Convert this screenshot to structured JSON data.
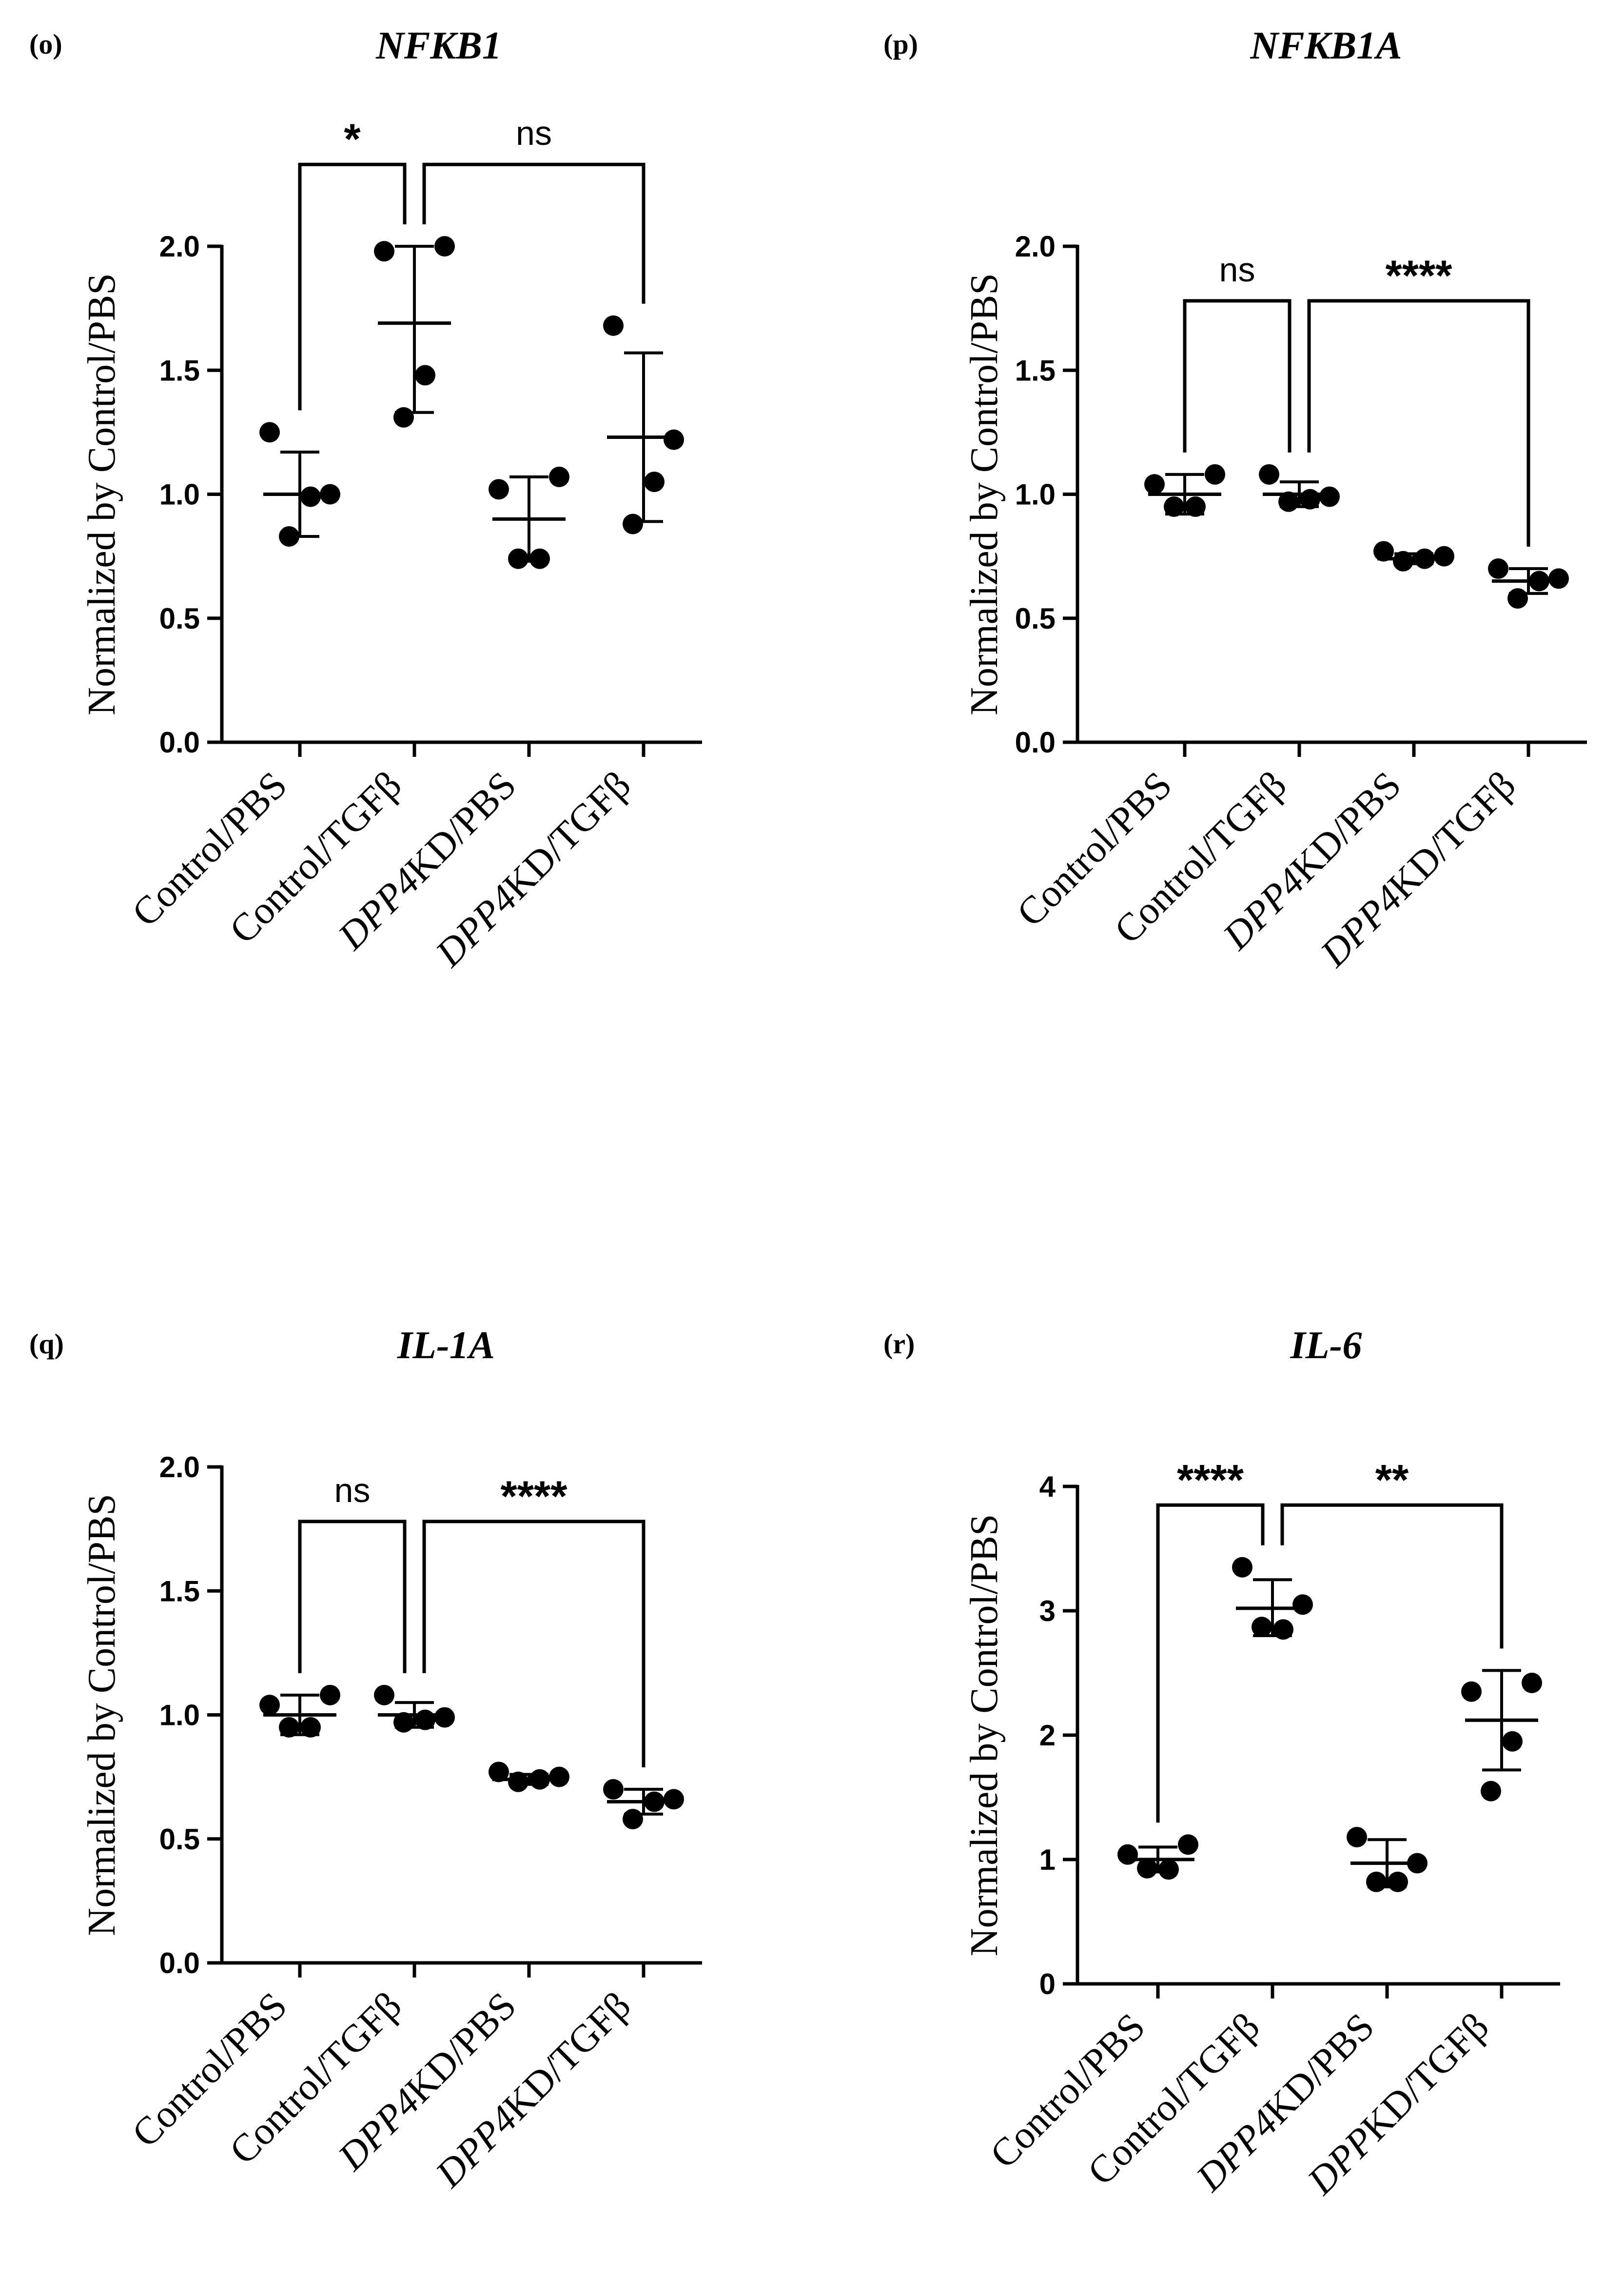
{
  "chart_data": [
    {
      "type": "scatter",
      "panel_label": "(o)",
      "title": "NFKB1",
      "ylabel": "Normalized by Control/PBS",
      "ylim": [
        0,
        2.0
      ],
      "yticks": [
        "0.0",
        "0.5",
        "1.0",
        "1.5",
        "2.0"
      ],
      "categories": [
        {
          "parts": [
            [
              "Control/PBS",
              false
            ]
          ]
        },
        {
          "parts": [
            [
              "Control/TGFβ",
              false
            ]
          ]
        },
        {
          "parts": [
            [
              "DPP4",
              true
            ],
            [
              "KD/PBS",
              false
            ]
          ]
        },
        {
          "parts": [
            [
              "DPP4",
              true
            ],
            [
              "KD/TGFβ",
              false
            ]
          ]
        }
      ],
      "groups": [
        {
          "points": [
            1.25,
            1.0,
            0.99,
            0.83
          ],
          "mean": 1.0,
          "err_low": 0.83,
          "err_high": 1.17
        },
        {
          "points": [
            1.98,
            2.0,
            1.48,
            1.31
          ],
          "mean": 1.69,
          "err_low": 1.33,
          "err_high": 2.0
        },
        {
          "points": [
            1.02,
            1.07,
            0.74,
            0.74
          ],
          "mean": 0.9,
          "err_low": 0.73,
          "err_high": 1.07
        },
        {
          "points": [
            1.68,
            1.22,
            1.05,
            0.88
          ],
          "mean": 1.23,
          "err_low": 0.89,
          "err_high": 1.57
        }
      ],
      "comparisons": [
        {
          "from": 0,
          "to": 1,
          "label": "*",
          "y": 2.33
        },
        {
          "from": 1,
          "to": 3,
          "label": "ns",
          "y": 2.33
        }
      ]
    },
    {
      "type": "scatter",
      "panel_label": "(p)",
      "title": "NFKB1A",
      "ylabel": "Normalized by Control/PBS",
      "ylim": [
        0,
        2.0
      ],
      "yticks": [
        "0.0",
        "0.5",
        "1.0",
        "1.5",
        "2.0"
      ],
      "categories": [
        {
          "parts": [
            [
              "Control/PBS",
              false
            ]
          ]
        },
        {
          "parts": [
            [
              "Control/TGFβ",
              false
            ]
          ]
        },
        {
          "parts": [
            [
              "DPP4",
              true
            ],
            [
              "KD/PBS",
              false
            ]
          ]
        },
        {
          "parts": [
            [
              "DPP4",
              true
            ],
            [
              "KD/TGFβ",
              false
            ]
          ]
        }
      ],
      "groups": [
        {
          "points": [
            1.04,
            1.08,
            0.95,
            0.95
          ],
          "mean": 1.0,
          "err_low": 0.92,
          "err_high": 1.08
        },
        {
          "points": [
            1.08,
            0.99,
            0.98,
            0.97
          ],
          "mean": 1.0,
          "err_low": 0.95,
          "err_high": 1.05
        },
        {
          "points": [
            0.77,
            0.75,
            0.74,
            0.73
          ],
          "mean": 0.74,
          "err_low": 0.72,
          "err_high": 0.76
        },
        {
          "points": [
            0.7,
            0.66,
            0.65,
            0.58
          ],
          "mean": 0.65,
          "err_low": 0.6,
          "err_high": 0.7
        }
      ],
      "comparisons": [
        {
          "from": 0,
          "to": 1,
          "label": "ns",
          "y": 1.78
        },
        {
          "from": 1,
          "to": 3,
          "label": "****",
          "y": 1.78
        }
      ]
    },
    {
      "type": "scatter",
      "panel_label": "(q)",
      "title": "IL-1A",
      "ylabel": "Normalized by Control/PBS",
      "ylim": [
        0,
        2.0
      ],
      "yticks": [
        "0.0",
        "0.5",
        "1.0",
        "1.5",
        "2.0"
      ],
      "categories": [
        {
          "parts": [
            [
              "Control/PBS",
              false
            ]
          ]
        },
        {
          "parts": [
            [
              "Control/TGFβ",
              false
            ]
          ]
        },
        {
          "parts": [
            [
              "DPP4",
              true
            ],
            [
              "KD/PBS",
              false
            ]
          ]
        },
        {
          "parts": [
            [
              "DPP4",
              true
            ],
            [
              "KD/TGFβ",
              false
            ]
          ]
        }
      ],
      "groups": [
        {
          "points": [
            1.04,
            1.08,
            0.95,
            0.95
          ],
          "mean": 1.0,
          "err_low": 0.92,
          "err_high": 1.08
        },
        {
          "points": [
            1.08,
            0.99,
            0.98,
            0.97
          ],
          "mean": 1.0,
          "err_low": 0.95,
          "err_high": 1.05
        },
        {
          "points": [
            0.77,
            0.75,
            0.74,
            0.73
          ],
          "mean": 0.74,
          "err_low": 0.72,
          "err_high": 0.76
        },
        {
          "points": [
            0.7,
            0.66,
            0.65,
            0.58
          ],
          "mean": 0.65,
          "err_low": 0.6,
          "err_high": 0.7
        }
      ],
      "comparisons": [
        {
          "from": 0,
          "to": 1,
          "label": "ns",
          "y": 1.78
        },
        {
          "from": 1,
          "to": 3,
          "label": "****",
          "y": 1.78
        }
      ]
    },
    {
      "type": "scatter",
      "panel_label": "(r)",
      "title": "IL-6",
      "ylabel": "Normalized by Control/PBS",
      "ylim": [
        0,
        4
      ],
      "yticks": [
        "0",
        "1",
        "2",
        "3",
        "4"
      ],
      "categories": [
        {
          "parts": [
            [
              "Control/PBS",
              false
            ]
          ]
        },
        {
          "parts": [
            [
              "Control/TGFβ",
              false
            ]
          ]
        },
        {
          "parts": [
            [
              "DPP4",
              true
            ],
            [
              "KD/PBS",
              false
            ]
          ]
        },
        {
          "parts": [
            [
              "DPP",
              true
            ],
            [
              "KD/TGFβ",
              false
            ]
          ]
        }
      ],
      "groups": [
        {
          "points": [
            1.04,
            1.12,
            0.92,
            0.93
          ],
          "mean": 1.0,
          "err_low": 0.9,
          "err_high": 1.1
        },
        {
          "points": [
            3.35,
            3.05,
            2.85,
            2.87
          ],
          "mean": 3.02,
          "err_low": 2.8,
          "err_high": 3.25
        },
        {
          "points": [
            1.18,
            0.97,
            0.82,
            0.82
          ],
          "mean": 0.97,
          "err_low": 0.78,
          "err_high": 1.16
        },
        {
          "points": [
            2.35,
            2.42,
            1.95,
            1.55
          ],
          "mean": 2.12,
          "err_low": 1.72,
          "err_high": 2.52
        }
      ],
      "comparisons": [
        {
          "from": 0,
          "to": 1,
          "label": "****",
          "y": 3.85
        },
        {
          "from": 1,
          "to": 3,
          "label": "**",
          "y": 3.85
        }
      ]
    }
  ]
}
